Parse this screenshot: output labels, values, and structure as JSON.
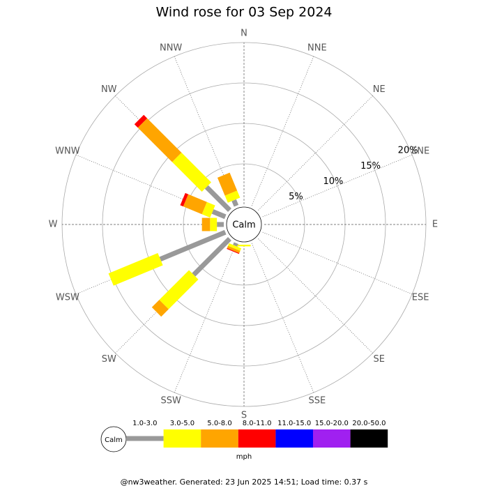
{
  "chart_data": {
    "type": "wind-rose",
    "title": "Wind rose for 03 Sep 2024",
    "directions": [
      "N",
      "NNE",
      "NE",
      "ENE",
      "E",
      "ESE",
      "SE",
      "SSE",
      "S",
      "SSW",
      "SW",
      "WSW",
      "W",
      "WNW",
      "NW",
      "NNW"
    ],
    "calm_label": "Calm",
    "rlim": [
      0,
      20
    ],
    "rticks": [
      {
        "value": 5,
        "label": "5%"
      },
      {
        "value": 10,
        "label": "10%"
      },
      {
        "value": 15,
        "label": "15%"
      },
      {
        "value": 20,
        "label": "20%"
      }
    ],
    "series": [
      {
        "name": "1.0-3.0",
        "color": "#999999",
        "values": [
          0,
          0,
          0,
          0,
          0,
          0,
          0,
          0,
          0,
          0.35,
          6.3,
          8.7,
          0.85,
          1.7,
          4.05,
          0.75
        ]
      },
      {
        "name": "3.0-5.0",
        "color": "#ffff00",
        "values": [
          0,
          0,
          0,
          0,
          0,
          0,
          0,
          0,
          0.2,
          0.35,
          5.2,
          6.6,
          0.85,
          1.1,
          5.2,
          0.95
        ]
      },
      {
        "name": "5.0-8.0",
        "color": "#ffa500",
        "values": [
          0,
          0,
          0,
          0,
          0,
          0,
          0,
          0,
          0,
          0.3,
          1.3,
          0,
          1.0,
          2.5,
          6.0,
          2.4
        ]
      },
      {
        "name": "8.0-11.0",
        "color": "#ff0000",
        "values": [
          0,
          0,
          0,
          0,
          0,
          0,
          0,
          0,
          0,
          0.1,
          0,
          0,
          0,
          0.4,
          0.6,
          0
        ]
      },
      {
        "name": "11.0-15.0",
        "color": "#0000ff",
        "values": [
          0,
          0,
          0,
          0,
          0,
          0,
          0,
          0,
          0,
          0,
          0,
          0,
          0,
          0,
          0,
          0
        ]
      },
      {
        "name": "15.0-20.0",
        "color": "#a020f0",
        "values": [
          0,
          0,
          0,
          0,
          0,
          0,
          0,
          0,
          0,
          0,
          0,
          0,
          0,
          0,
          0,
          0
        ]
      },
      {
        "name": "20.0-50.0",
        "color": "#000000",
        "values": [
          0,
          0,
          0,
          0,
          0,
          0,
          0,
          0,
          0,
          0,
          0,
          0,
          0,
          0,
          0,
          0
        ]
      }
    ],
    "legend_unit": "mph",
    "footer": "@nw3weather. Generated: 23 Jun 2025 14:51; Load time: 0.37 s"
  }
}
